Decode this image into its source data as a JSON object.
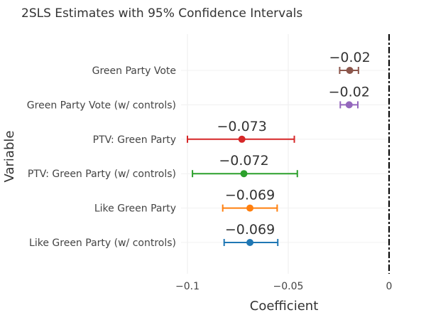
{
  "chart_data": {
    "type": "scatter",
    "title": "2SLS Estimates with 95% Confidence Intervals",
    "xlabel": "Coefficient",
    "ylabel": "Variable",
    "xlim": [
      -0.1,
      0
    ],
    "xticks": [
      {
        "value": -0.1,
        "label": "−0.1"
      },
      {
        "value": -0.05,
        "label": "−0.05"
      },
      {
        "value": 0,
        "label": "0"
      }
    ],
    "grid": true,
    "reference_line": {
      "x": 0,
      "style": "dash-dot",
      "color": "#000000"
    },
    "points": [
      {
        "label": "Green Party Vote",
        "estimate": -0.0195,
        "ci_low": -0.0245,
        "ci_high": -0.0152,
        "data_label": "−0.02",
        "color": "#8c564b"
      },
      {
        "label": "Green Party Vote (w/ controls)",
        "estimate": -0.0198,
        "ci_low": -0.0242,
        "ci_high": -0.0155,
        "data_label": "−0.02",
        "color": "#9467bd"
      },
      {
        "label": "PTV: Green Party",
        "estimate": -0.073,
        "ci_low": -0.1,
        "ci_high": -0.047,
        "data_label": "−0.073",
        "color": "#d62728"
      },
      {
        "label": "PTV: Green Party (w/ controls)",
        "estimate": -0.072,
        "ci_low": -0.0975,
        "ci_high": -0.0455,
        "data_label": "−0.072",
        "color": "#2ca02c"
      },
      {
        "label": "Like Green Party",
        "estimate": -0.069,
        "ci_low": -0.0825,
        "ci_high": -0.0555,
        "data_label": "−0.069",
        "color": "#ff7f0e"
      },
      {
        "label": "Like Green Party (w/ controls)",
        "estimate": -0.069,
        "ci_low": -0.0818,
        "ci_high": -0.0552,
        "data_label": "−0.069",
        "color": "#1f77b4"
      }
    ]
  }
}
